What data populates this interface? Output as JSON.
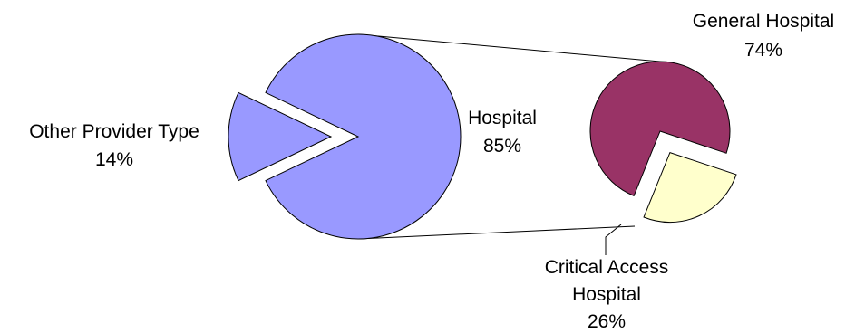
{
  "chart_data": {
    "type": "pie",
    "variant": "bar-of-pie",
    "main_pie": {
      "slices": [
        {
          "label": "Hospital",
          "value": 85,
          "value_label": "85%",
          "color": "#9999ff",
          "exploded": false,
          "links_to_secondary": true
        },
        {
          "label": "Other Provider Type",
          "value": 14,
          "value_label": "14%",
          "color": "#9999ff",
          "exploded": true
        }
      ]
    },
    "secondary_pie": {
      "breakdown_of": "Hospital",
      "slices": [
        {
          "label": "General Hospital",
          "value": 74,
          "value_label": "74%",
          "color": "#993366",
          "exploded": false
        },
        {
          "label": "Critical Access Hospital",
          "label_lines": [
            "Critical Access",
            "Hospital"
          ],
          "value": 26,
          "value_label": "26%",
          "color": "#ffffcc",
          "exploded": true
        }
      ]
    },
    "legend": "none",
    "grid": false
  }
}
